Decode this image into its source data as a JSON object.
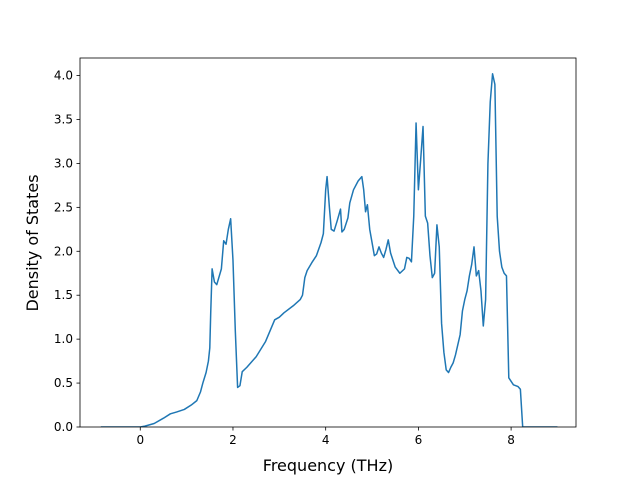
{
  "chart_data": {
    "type": "line",
    "title": "",
    "xlabel": "Frequency (THz)",
    "ylabel": "Density of States",
    "xlim": [
      -1.3,
      9.4
    ],
    "ylim": [
      0.0,
      4.2
    ],
    "x_ticks": [
      0,
      2,
      4,
      6,
      8
    ],
    "x_tick_labels": [
      "0",
      "2",
      "4",
      "6",
      "8"
    ],
    "y_ticks": [
      0.0,
      0.5,
      1.0,
      1.5,
      2.0,
      2.5,
      3.0,
      3.5,
      4.0
    ],
    "y_tick_labels": [
      "0.0",
      "0.5",
      "1.0",
      "1.5",
      "2.0",
      "2.5",
      "3.0",
      "3.5",
      "4.0"
    ],
    "grid": false,
    "line_color": "#1f77b4",
    "series": [
      {
        "x": [
          -0.85,
          -0.5,
          0.0,
          0.1,
          0.3,
          0.5,
          0.65,
          0.78,
          0.95,
          1.1,
          1.22,
          1.3,
          1.35,
          1.42,
          1.47,
          1.5,
          1.52,
          1.55,
          1.6,
          1.65,
          1.75,
          1.8,
          1.85,
          1.9,
          1.95,
          2.0,
          2.05,
          2.1,
          2.15,
          2.2,
          2.3,
          2.5,
          2.7,
          2.9,
          3.0,
          3.1,
          3.3,
          3.45,
          3.5,
          3.55,
          3.6,
          3.7,
          3.8,
          3.9,
          3.95,
          4.0,
          4.03,
          4.08,
          4.12,
          4.18,
          4.25,
          4.32,
          4.35,
          4.4,
          4.48,
          4.52,
          4.6,
          4.7,
          4.78,
          4.82,
          4.86,
          4.9,
          4.95,
          5.0,
          5.05,
          5.1,
          5.15,
          5.2,
          5.25,
          5.3,
          5.35,
          5.4,
          5.5,
          5.6,
          5.7,
          5.75,
          5.8,
          5.85,
          5.9,
          5.95,
          6.0,
          6.05,
          6.1,
          6.15,
          6.2,
          6.25,
          6.3,
          6.35,
          6.4,
          6.45,
          6.5,
          6.55,
          6.6,
          6.65,
          6.7,
          6.75,
          6.8,
          6.9,
          6.95,
          7.0,
          7.05,
          7.1,
          7.15,
          7.2,
          7.25,
          7.3,
          7.35,
          7.4,
          7.45,
          7.5,
          7.55,
          7.6,
          7.65,
          7.7,
          7.75,
          7.8,
          7.85,
          7.9,
          7.95,
          8.0,
          8.05,
          8.1,
          8.15,
          8.2,
          8.25,
          8.5,
          9.0
        ],
        "y": [
          0.0,
          0.0,
          0.0,
          0.01,
          0.04,
          0.1,
          0.15,
          0.17,
          0.2,
          0.25,
          0.3,
          0.4,
          0.5,
          0.62,
          0.75,
          0.9,
          1.3,
          1.8,
          1.65,
          1.62,
          1.8,
          2.12,
          2.08,
          2.25,
          2.37,
          1.9,
          1.1,
          0.45,
          0.47,
          0.63,
          0.68,
          0.8,
          0.97,
          1.22,
          1.25,
          1.3,
          1.38,
          1.45,
          1.5,
          1.7,
          1.78,
          1.87,
          1.95,
          2.1,
          2.2,
          2.7,
          2.85,
          2.5,
          2.25,
          2.23,
          2.35,
          2.48,
          2.22,
          2.25,
          2.38,
          2.55,
          2.7,
          2.8,
          2.85,
          2.7,
          2.45,
          2.53,
          2.25,
          2.1,
          1.95,
          1.97,
          2.05,
          1.98,
          1.93,
          2.02,
          2.13,
          1.98,
          1.82,
          1.75,
          1.8,
          1.93,
          1.92,
          1.88,
          2.4,
          3.46,
          2.7,
          3.05,
          3.42,
          2.4,
          2.32,
          1.95,
          1.7,
          1.75,
          2.3,
          2.05,
          1.18,
          0.85,
          0.65,
          0.62,
          0.68,
          0.73,
          0.82,
          1.05,
          1.32,
          1.45,
          1.55,
          1.72,
          1.85,
          2.05,
          1.72,
          1.78,
          1.55,
          1.15,
          1.45,
          3.0,
          3.7,
          4.02,
          3.9,
          2.4,
          2.0,
          1.82,
          1.75,
          1.72,
          0.56,
          0.52,
          0.48,
          0.47,
          0.46,
          0.43,
          0.0,
          0.0,
          0.0
        ]
      }
    ]
  }
}
